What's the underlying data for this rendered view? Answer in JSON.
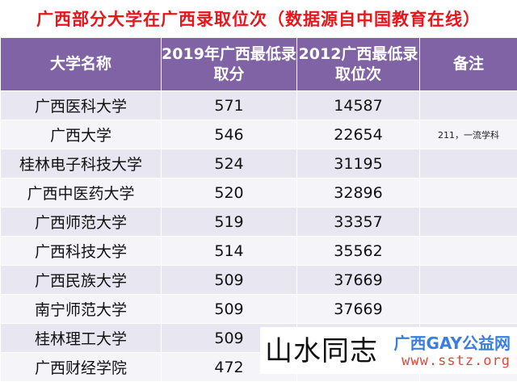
{
  "title": "广西部分大学在广西录取位次（数据源自中国教育在线）",
  "headers": [
    "大学名称",
    "2019年广西最低录取分",
    "2012广西最低录取位次",
    "备注"
  ],
  "rows": [
    {
      "name": "广西医科大学",
      "score": "571",
      "rank": "14587",
      "note": ""
    },
    {
      "name": "广西大学",
      "score": "546",
      "rank": "22654",
      "note": "211，一流学科"
    },
    {
      "name": "桂林电子科技大学",
      "score": "524",
      "rank": "31195",
      "note": ""
    },
    {
      "name": "广西中医药大学",
      "score": "520",
      "rank": "32896",
      "note": ""
    },
    {
      "name": "广西师范大学",
      "score": "519",
      "rank": "33357",
      "note": ""
    },
    {
      "name": "广西科技大学",
      "score": "514",
      "rank": "35562",
      "note": ""
    },
    {
      "name": "广西民族大学",
      "score": "509",
      "rank": "37669",
      "note": ""
    },
    {
      "name": "南宁师范大学",
      "score": "509",
      "rank": "37669",
      "note": ""
    },
    {
      "name": "桂林理工大学",
      "score": "509",
      "rank": "37669",
      "note": ""
    },
    {
      "name": "广西财经学院",
      "score": "472",
      "rank": "",
      "note": ""
    }
  ],
  "watermark": {
    "big": "山水同志",
    "site": "广西GAY公益网",
    "url": "www.sstz.org"
  },
  "colors": {
    "title": "#e8151b",
    "header_bg": "#7f63a5",
    "row_odd": "#e8e6f1",
    "row_even": "#f5f4f9"
  }
}
